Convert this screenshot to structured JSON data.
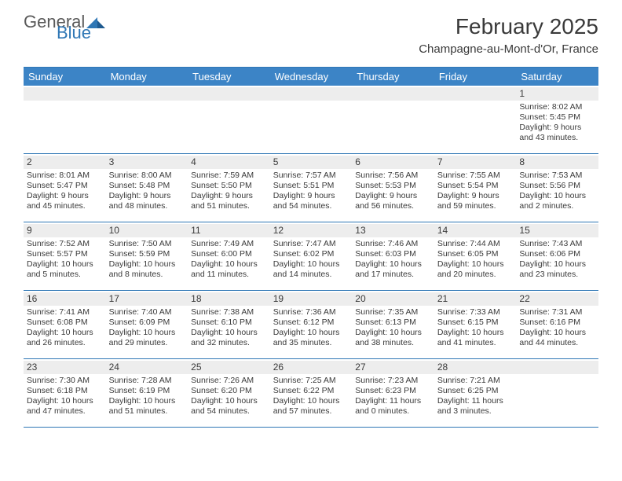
{
  "logo": {
    "word1": "General",
    "word2": "Blue"
  },
  "title": "February 2025",
  "location": "Champagne-au-Mont-d'Or, France",
  "colors": {
    "header_bg": "#3c84c6",
    "border": "#2f77b5",
    "stripe": "#ededed",
    "text": "#3a3a3a",
    "logo_gray": "#5a5a5a",
    "logo_blue": "#2f77b5"
  },
  "dayNames": [
    "Sunday",
    "Monday",
    "Tuesday",
    "Wednesday",
    "Thursday",
    "Friday",
    "Saturday"
  ],
  "weeks": [
    [
      null,
      null,
      null,
      null,
      null,
      null,
      {
        "n": "1",
        "sr": "8:02 AM",
        "ss": "5:45 PM",
        "dl": "9 hours and 43 minutes."
      }
    ],
    [
      {
        "n": "2",
        "sr": "8:01 AM",
        "ss": "5:47 PM",
        "dl": "9 hours and 45 minutes."
      },
      {
        "n": "3",
        "sr": "8:00 AM",
        "ss": "5:48 PM",
        "dl": "9 hours and 48 minutes."
      },
      {
        "n": "4",
        "sr": "7:59 AM",
        "ss": "5:50 PM",
        "dl": "9 hours and 51 minutes."
      },
      {
        "n": "5",
        "sr": "7:57 AM",
        "ss": "5:51 PM",
        "dl": "9 hours and 54 minutes."
      },
      {
        "n": "6",
        "sr": "7:56 AM",
        "ss": "5:53 PM",
        "dl": "9 hours and 56 minutes."
      },
      {
        "n": "7",
        "sr": "7:55 AM",
        "ss": "5:54 PM",
        "dl": "9 hours and 59 minutes."
      },
      {
        "n": "8",
        "sr": "7:53 AM",
        "ss": "5:56 PM",
        "dl": "10 hours and 2 minutes."
      }
    ],
    [
      {
        "n": "9",
        "sr": "7:52 AM",
        "ss": "5:57 PM",
        "dl": "10 hours and 5 minutes."
      },
      {
        "n": "10",
        "sr": "7:50 AM",
        "ss": "5:59 PM",
        "dl": "10 hours and 8 minutes."
      },
      {
        "n": "11",
        "sr": "7:49 AM",
        "ss": "6:00 PM",
        "dl": "10 hours and 11 minutes."
      },
      {
        "n": "12",
        "sr": "7:47 AM",
        "ss": "6:02 PM",
        "dl": "10 hours and 14 minutes."
      },
      {
        "n": "13",
        "sr": "7:46 AM",
        "ss": "6:03 PM",
        "dl": "10 hours and 17 minutes."
      },
      {
        "n": "14",
        "sr": "7:44 AM",
        "ss": "6:05 PM",
        "dl": "10 hours and 20 minutes."
      },
      {
        "n": "15",
        "sr": "7:43 AM",
        "ss": "6:06 PM",
        "dl": "10 hours and 23 minutes."
      }
    ],
    [
      {
        "n": "16",
        "sr": "7:41 AM",
        "ss": "6:08 PM",
        "dl": "10 hours and 26 minutes."
      },
      {
        "n": "17",
        "sr": "7:40 AM",
        "ss": "6:09 PM",
        "dl": "10 hours and 29 minutes."
      },
      {
        "n": "18",
        "sr": "7:38 AM",
        "ss": "6:10 PM",
        "dl": "10 hours and 32 minutes."
      },
      {
        "n": "19",
        "sr": "7:36 AM",
        "ss": "6:12 PM",
        "dl": "10 hours and 35 minutes."
      },
      {
        "n": "20",
        "sr": "7:35 AM",
        "ss": "6:13 PM",
        "dl": "10 hours and 38 minutes."
      },
      {
        "n": "21",
        "sr": "7:33 AM",
        "ss": "6:15 PM",
        "dl": "10 hours and 41 minutes."
      },
      {
        "n": "22",
        "sr": "7:31 AM",
        "ss": "6:16 PM",
        "dl": "10 hours and 44 minutes."
      }
    ],
    [
      {
        "n": "23",
        "sr": "7:30 AM",
        "ss": "6:18 PM",
        "dl": "10 hours and 47 minutes."
      },
      {
        "n": "24",
        "sr": "7:28 AM",
        "ss": "6:19 PM",
        "dl": "10 hours and 51 minutes."
      },
      {
        "n": "25",
        "sr": "7:26 AM",
        "ss": "6:20 PM",
        "dl": "10 hours and 54 minutes."
      },
      {
        "n": "26",
        "sr": "7:25 AM",
        "ss": "6:22 PM",
        "dl": "10 hours and 57 minutes."
      },
      {
        "n": "27",
        "sr": "7:23 AM",
        "ss": "6:23 PM",
        "dl": "11 hours and 0 minutes."
      },
      {
        "n": "28",
        "sr": "7:21 AM",
        "ss": "6:25 PM",
        "dl": "11 hours and 3 minutes."
      },
      null
    ]
  ],
  "labels": {
    "sunrise": "Sunrise:",
    "sunset": "Sunset:",
    "daylight": "Daylight:"
  }
}
